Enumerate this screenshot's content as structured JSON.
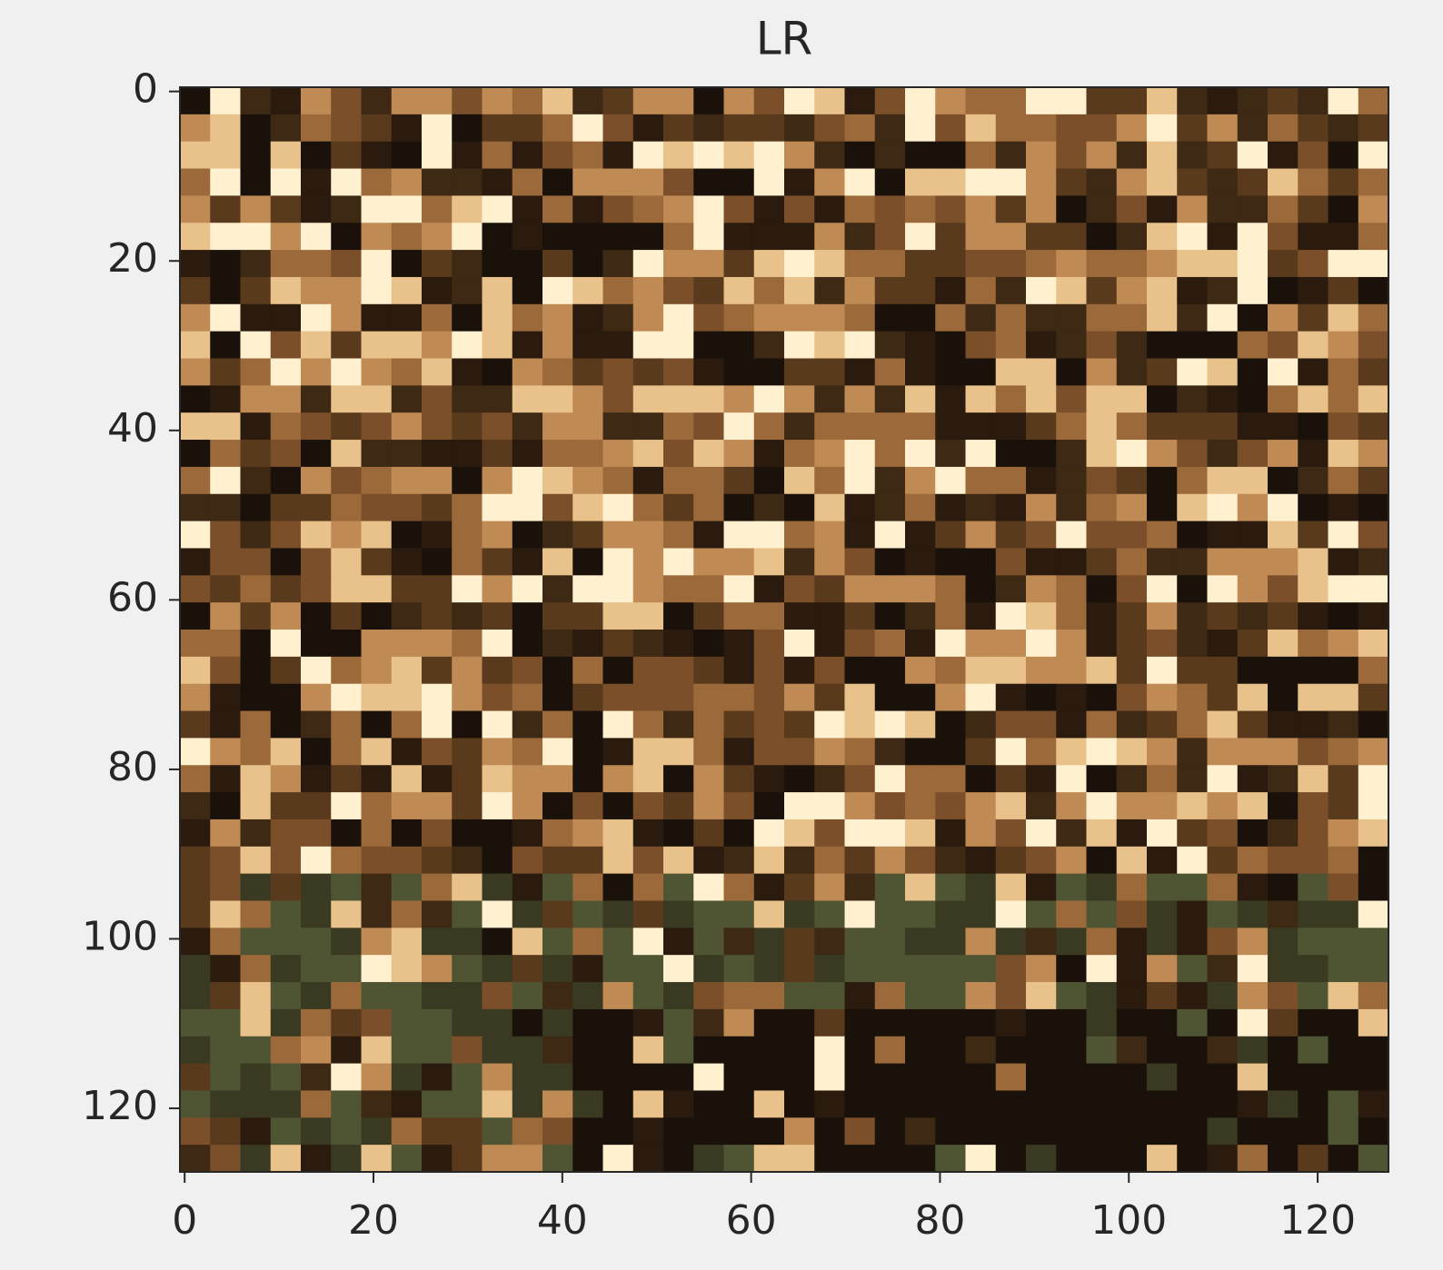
{
  "chart_data": {
    "type": "image",
    "title": "LR",
    "xlim": [
      -0.5,
      127.5
    ],
    "ylim": [
      127.5,
      -0.5
    ],
    "xticks": [
      0,
      20,
      40,
      60,
      80,
      100,
      120
    ],
    "yticks": [
      0,
      20,
      40,
      60,
      80,
      100,
      120
    ]
  }
}
